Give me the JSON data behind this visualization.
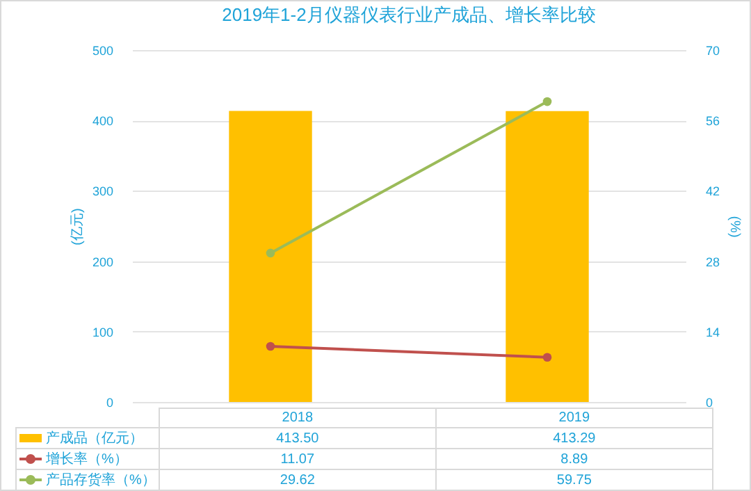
{
  "chart_data": {
    "type": "bar",
    "title": "2019年1-2月仪器仪表行业产成品、增长率比较",
    "ylabel": "(亿元)",
    "y2label": "(%)",
    "categories": [
      "2018",
      "2019"
    ],
    "series": [
      {
        "name": "产成品（亿元）",
        "color": "#ffc000",
        "values": [
          413.5,
          413.29
        ],
        "value_labels": [
          "413.50",
          "413.29"
        ]
      },
      {
        "name": "增长率（%）",
        "type": "line",
        "axis": "y2",
        "color": "#c0504d",
        "values": [
          11.07,
          8.89
        ],
        "value_labels": [
          "11.07",
          "8.89"
        ]
      },
      {
        "name": "产品存货率（%）",
        "type": "line",
        "axis": "y2",
        "color": "#9bbb59",
        "values": [
          29.62,
          59.75
        ],
        "value_labels": [
          "29.62",
          "59.75"
        ]
      }
    ],
    "ylim": [
      0,
      500
    ],
    "yticks": [
      0,
      100,
      200,
      300,
      400,
      500
    ],
    "y2lim": [
      0,
      70
    ],
    "y2ticks": [
      0,
      14,
      28,
      42,
      56,
      70
    ],
    "grid": "y",
    "legend": "bottom",
    "marker": "circle"
  }
}
